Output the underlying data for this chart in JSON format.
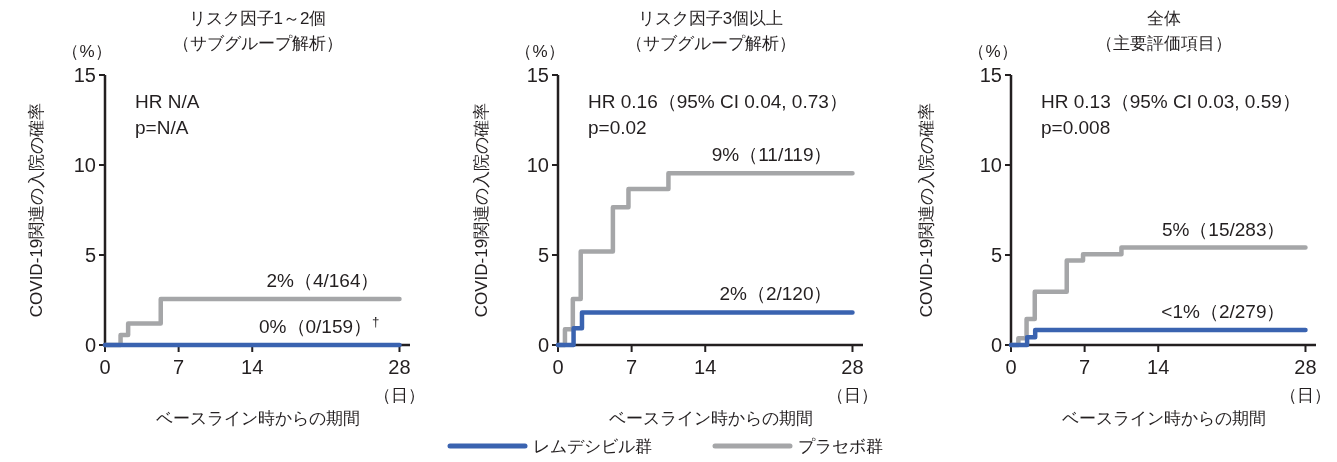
{
  "chart_data": [
    {
      "type": "step",
      "title": "リスク因子1～2個",
      "subtitle": "（サブグループ解析）",
      "ylabel": "COVID-19関連の入院の確率",
      "xlabel": "ベースライン時からの期間",
      "xlim": [
        0,
        29
      ],
      "ylim": [
        0,
        15
      ],
      "xticks": [
        0,
        7,
        14,
        28
      ],
      "yticks": [
        0,
        5,
        10,
        15
      ],
      "series": [
        {
          "color": "#3a63b0",
          "x": [
            0,
            28
          ],
          "values": [
            0,
            0
          ]
        },
        {
          "color": "#a5a6a8",
          "x": [
            0,
            1.48,
            2.2,
            5.3,
            28
          ],
          "values": [
            0,
            0.56,
            1.2,
            2.55,
            2.55
          ]
        }
      ],
      "annotations": [
        "（%）",
        "（日）",
        "HR N/A",
        "p=N/A",
        "0%（0/159）$^{†}$",
        "2%（4/164）"
      ]
    },
    {
      "type": "step",
      "title": "リスク因子3個以上",
      "subtitle": "（サブグループ解析）",
      "ylabel": "COVID-19関連の入院の確率",
      "xlabel": "ベースライン時からの期間",
      "xlim": [
        0,
        29
      ],
      "ylim": [
        0,
        15
      ],
      "xticks": [
        0,
        7,
        14,
        28
      ],
      "yticks": [
        0,
        5,
        10,
        15
      ],
      "legend": "bottom",
      "series": [
        {
          "name": "レムデシビル群",
          "color": "#3a63b0",
          "x": [
            0,
            1.48,
            2.28,
            28
          ],
          "values": [
            0,
            0.93,
            1.81,
            1.81
          ]
        },
        {
          "name": "プラセボ群",
          "color": "#a5a6a8",
          "x": [
            0,
            0.66,
            1.41,
            2.16,
            5.22,
            6.7,
            10.5,
            28
          ],
          "values": [
            0,
            0.87,
            2.56,
            5.19,
            7.65,
            8.67,
            9.54,
            9.54
          ]
        }
      ],
      "annotations": [
        "（%）",
        "（日）",
        "HR 0.16（95% CI 0.04, 0.73）",
        "p=0.02",
        "2%（2/120）",
        "9%（11/119）"
      ]
    },
    {
      "type": "step",
      "title": "全体",
      "subtitle": "（主要評価項目）",
      "ylabel": "COVID-19関連の入院の確率",
      "xlabel": "ベースライン時からの期間",
      "xlim": [
        0,
        29
      ],
      "ylim": [
        0,
        15
      ],
      "xticks": [
        0,
        7,
        14,
        28
      ],
      "yticks": [
        0,
        5,
        10,
        15
      ],
      "series": [
        {
          "color": "#3a63b0",
          "x": [
            0,
            1.53,
            2.3,
            28
          ],
          "values": [
            0,
            0.43,
            0.83,
            0.83
          ]
        },
        {
          "color": "#a5a6a8",
          "x": [
            0,
            0.7,
            1.48,
            2.26,
            5.3,
            6.85,
            10.5,
            28
          ],
          "values": [
            0,
            0.37,
            1.44,
            2.96,
            4.69,
            5.04,
            5.41,
            5.41
          ]
        }
      ],
      "annotations": [
        "（%）",
        "（日）",
        "HR 0.13（95% CI 0.03, 0.59）",
        "p=0.008",
        "<1%（2/279）",
        "5%（15/283）"
      ]
    }
  ]
}
